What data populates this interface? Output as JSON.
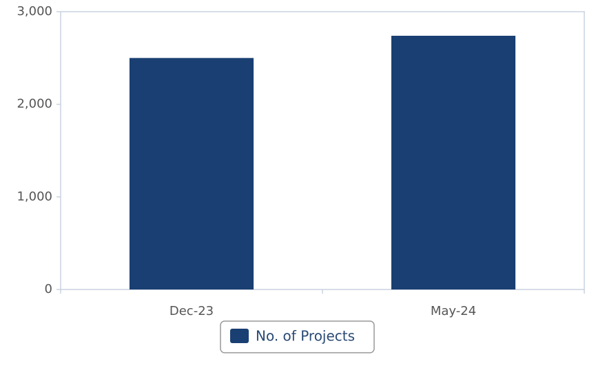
{
  "chart_data": {
    "type": "bar",
    "categories": [
      "Dec-23",
      "May-24"
    ],
    "series": [
      {
        "name": "No. of Projects",
        "color": "#1a3f72",
        "values": [
          2500,
          2740
        ]
      }
    ],
    "ylim": [
      0,
      3000
    ],
    "yticks": [
      0,
      {
        "value": 1000,
        "label": "1,000"
      },
      {
        "value": 2000,
        "label": "2,000"
      },
      {
        "value": 3000,
        "label": "3,000"
      }
    ],
    "grid": false,
    "legend": "bottom"
  }
}
